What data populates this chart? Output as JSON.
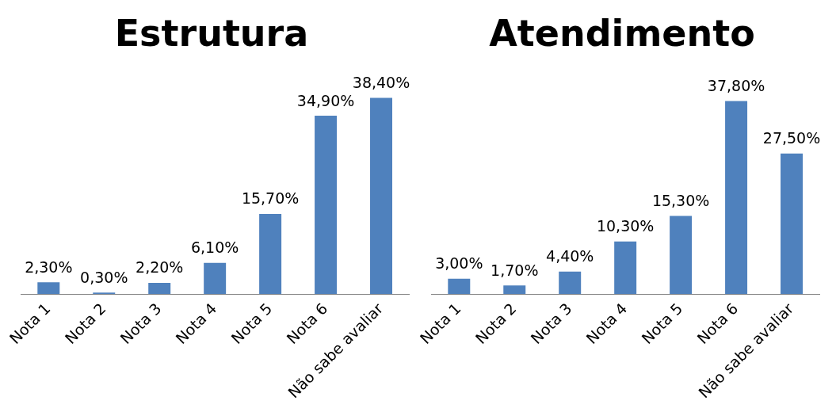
{
  "chart_data": [
    {
      "type": "bar",
      "title": "Estrutura",
      "categories": [
        "Nota 1",
        "Nota 2",
        "Nota 3",
        "Nota 4",
        "Nota 5",
        "Nota 6",
        "Não sabe avaliar"
      ],
      "values": [
        2.3,
        0.3,
        2.2,
        6.1,
        15.7,
        34.9,
        38.4
      ],
      "value_labels": [
        "2,30%",
        "0,30%",
        "2,20%",
        "6,10%",
        "15,70%",
        "34,90%",
        "38,40%"
      ],
      "color": "#4f81bd",
      "grid": false,
      "legend": false
    },
    {
      "type": "bar",
      "title": "Atendimento",
      "categories": [
        "Nota 1",
        "Nota 2",
        "Nota 3",
        "Nota 4",
        "Nota 5",
        "Nota 6",
        "Não sabe avaliar"
      ],
      "values": [
        3.0,
        1.7,
        4.4,
        10.3,
        15.3,
        37.8,
        27.5
      ],
      "value_labels": [
        "3,00%",
        "1,70%",
        "4,40%",
        "10,30%",
        "15,30%",
        "37,80%",
        "27,50%"
      ],
      "color": "#4f81bd",
      "grid": false,
      "legend": false
    }
  ]
}
